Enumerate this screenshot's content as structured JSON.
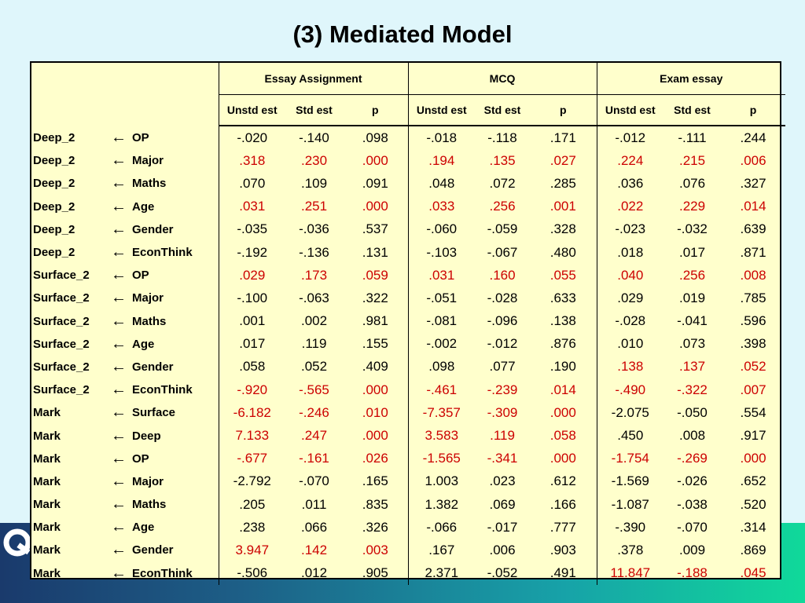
{
  "title": "(3) Mediated Model",
  "colors": {
    "background": "#dff6fb",
    "table_bg": "#ffffcc",
    "significant": "#cc0000"
  },
  "groups": [
    "Essay Assignment",
    "MCQ",
    "Exam essay"
  ],
  "subheaders": [
    "Unstd est",
    "Std est",
    "p"
  ],
  "arrow": "←",
  "rows": [
    {
      "dv": "Deep_2",
      "iv": "OP",
      "vals": [
        [
          "-.020",
          "-.140",
          ".098",
          false
        ],
        [
          "-.018",
          "-.118",
          ".171",
          false
        ],
        [
          "-.012",
          "-.111",
          ".244",
          false
        ]
      ]
    },
    {
      "dv": "Deep_2",
      "iv": "Major",
      "vals": [
        [
          ".318",
          ".230",
          ".000",
          true
        ],
        [
          ".194",
          ".135",
          ".027",
          true
        ],
        [
          ".224",
          ".215",
          ".006",
          true
        ]
      ]
    },
    {
      "dv": "Deep_2",
      "iv": "Maths",
      "vals": [
        [
          ".070",
          ".109",
          ".091",
          false
        ],
        [
          ".048",
          ".072",
          ".285",
          false
        ],
        [
          ".036",
          ".076",
          ".327",
          false
        ]
      ]
    },
    {
      "dv": "Deep_2",
      "iv": "Age",
      "vals": [
        [
          ".031",
          ".251",
          ".000",
          true
        ],
        [
          ".033",
          ".256",
          ".001",
          true
        ],
        [
          ".022",
          ".229",
          ".014",
          true
        ]
      ]
    },
    {
      "dv": "Deep_2",
      "iv": "Gender",
      "vals": [
        [
          "-.035",
          "-.036",
          ".537",
          false
        ],
        [
          "-.060",
          "-.059",
          ".328",
          false
        ],
        [
          "-.023",
          "-.032",
          ".639",
          false
        ]
      ]
    },
    {
      "dv": "Deep_2",
      "iv": "EconThink",
      "vals": [
        [
          "-.192",
          "-.136",
          ".131",
          false
        ],
        [
          "-.103",
          "-.067",
          ".480",
          false
        ],
        [
          ".018",
          ".017",
          ".871",
          false
        ]
      ]
    },
    {
      "dv": "Surface_2",
      "iv": "OP",
      "vals": [
        [
          ".029",
          ".173",
          ".059",
          true
        ],
        [
          ".031",
          ".160",
          ".055",
          true
        ],
        [
          ".040",
          ".256",
          ".008",
          true
        ]
      ]
    },
    {
      "dv": "Surface_2",
      "iv": "Major",
      "vals": [
        [
          "-.100",
          "-.063",
          ".322",
          false
        ],
        [
          "-.051",
          "-.028",
          ".633",
          false
        ],
        [
          ".029",
          ".019",
          ".785",
          false
        ]
      ]
    },
    {
      "dv": "Surface_2",
      "iv": "Maths",
      "vals": [
        [
          ".001",
          ".002",
          ".981",
          false
        ],
        [
          "-.081",
          "-.096",
          ".138",
          false
        ],
        [
          "-.028",
          "-.041",
          ".596",
          false
        ]
      ]
    },
    {
      "dv": "Surface_2",
      "iv": "Age",
      "vals": [
        [
          ".017",
          ".119",
          ".155",
          false
        ],
        [
          "-.002",
          "-.012",
          ".876",
          false
        ],
        [
          ".010",
          ".073",
          ".398",
          false
        ]
      ]
    },
    {
      "dv": "Surface_2",
      "iv": "Gender",
      "vals": [
        [
          ".058",
          ".052",
          ".409",
          false
        ],
        [
          ".098",
          ".077",
          ".190",
          false
        ],
        [
          ".138",
          ".137",
          ".052",
          true
        ]
      ]
    },
    {
      "dv": "Surface_2",
      "iv": "EconThink",
      "vals": [
        [
          "-.920",
          "-.565",
          ".000",
          true
        ],
        [
          "-.461",
          "-.239",
          ".014",
          true
        ],
        [
          "-.490",
          "-.322",
          ".007",
          true
        ]
      ]
    },
    {
      "dv": "Mark",
      "iv": "Surface",
      "vals": [
        [
          "-6.182",
          "-.246",
          ".010",
          true
        ],
        [
          "-7.357",
          "-.309",
          ".000",
          true
        ],
        [
          "-2.075",
          "-.050",
          ".554",
          false
        ]
      ]
    },
    {
      "dv": "Mark",
      "iv": "Deep",
      "vals": [
        [
          "7.133",
          ".247",
          ".000",
          true
        ],
        [
          "3.583",
          ".119",
          ".058",
          true
        ],
        [
          ".450",
          ".008",
          ".917",
          false
        ]
      ]
    },
    {
      "dv": "Mark",
      "iv": "OP",
      "vals": [
        [
          "-.677",
          "-.161",
          ".026",
          true
        ],
        [
          "-1.565",
          "-.341",
          ".000",
          true
        ],
        [
          "-1.754",
          "-.269",
          ".000",
          true
        ]
      ]
    },
    {
      "dv": "Mark",
      "iv": "Major",
      "vals": [
        [
          "-2.792",
          "-.070",
          ".165",
          false
        ],
        [
          "1.003",
          ".023",
          ".612",
          false
        ],
        [
          "-1.569",
          "-.026",
          ".652",
          false
        ]
      ]
    },
    {
      "dv": "Mark",
      "iv": "Maths",
      "vals": [
        [
          ".205",
          ".011",
          ".835",
          false
        ],
        [
          "1.382",
          ".069",
          ".166",
          false
        ],
        [
          "-1.087",
          "-.038",
          ".520",
          false
        ]
      ]
    },
    {
      "dv": "Mark",
      "iv": "Age",
      "vals": [
        [
          ".238",
          ".066",
          ".326",
          false
        ],
        [
          "-.066",
          "-.017",
          ".777",
          false
        ],
        [
          "-.390",
          "-.070",
          ".314",
          false
        ]
      ]
    },
    {
      "dv": "Mark",
      "iv": "Gender",
      "vals": [
        [
          "3.947",
          ".142",
          ".003",
          true
        ],
        [
          ".167",
          ".006",
          ".903",
          false
        ],
        [
          ".378",
          ".009",
          ".869",
          false
        ]
      ]
    },
    {
      "dv": "Mark",
      "iv": "EconThink",
      "vals": [
        [
          "-.506",
          ".012",
          ".905",
          false
        ],
        [
          "2.371",
          "-.052",
          ".491",
          false
        ],
        [
          "11.847",
          "-.188",
          ".045",
          true
        ]
      ]
    }
  ]
}
